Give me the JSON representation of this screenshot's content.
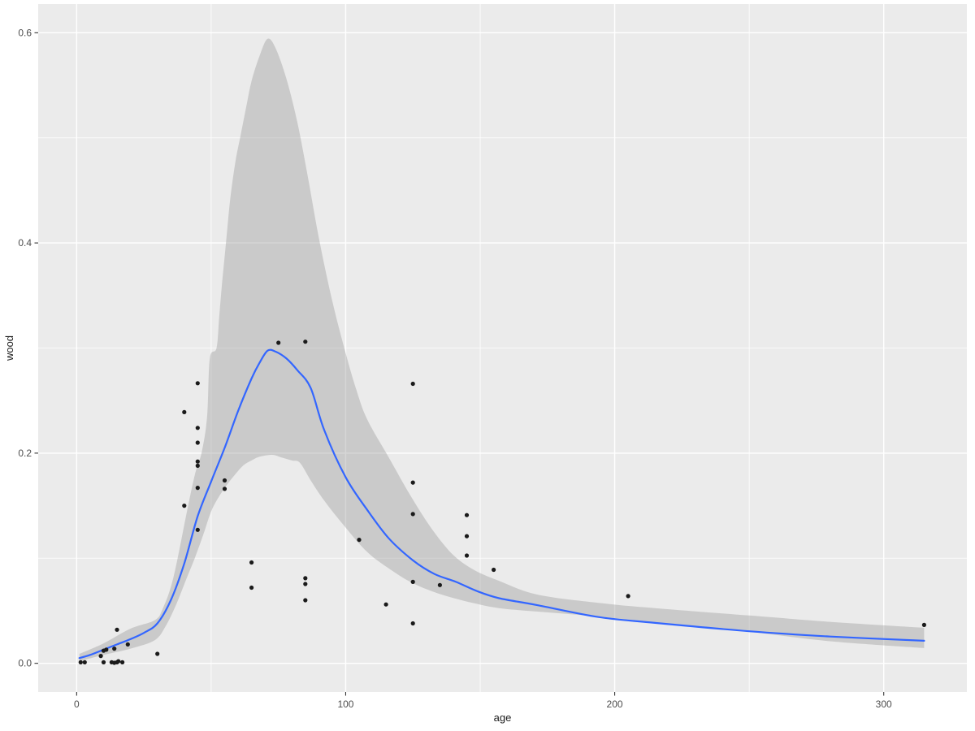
{
  "chart_data": {
    "type": "scatter",
    "title": "",
    "xlabel": "age",
    "ylabel": "wood",
    "legend": "none",
    "grid": "on",
    "panel_background": "#ebebeb",
    "grid_color": "#ffffff",
    "point_color": "#1a1a1a",
    "smooth_line_color": "#3366ff",
    "ribbon_color": "#999999",
    "ribbon_opacity": 0.4,
    "tick_text_color": "#4d4d4d",
    "xlim": [
      -14.3,
      330.9
    ],
    "ylim": [
      -0.0273,
      0.6273
    ],
    "x_ticks": [
      0,
      100,
      200,
      300
    ],
    "x_tick_labels": [
      "0",
      "100",
      "200",
      "300"
    ],
    "x_minor_ticks": [
      50,
      150,
      250
    ],
    "y_ticks": [
      0.0,
      0.2,
      0.4,
      0.6
    ],
    "y_tick_labels": [
      "0.0",
      "0.2",
      "0.4",
      "0.6"
    ],
    "y_minor_ticks": [
      0.1,
      0.3,
      0.5
    ],
    "points": [
      [
        1.5,
        0.001
      ],
      [
        3,
        0.001
      ],
      [
        9,
        0.007
      ],
      [
        10,
        0.001
      ],
      [
        10,
        0.012
      ],
      [
        11,
        0.013
      ],
      [
        13,
        0.001
      ],
      [
        14,
        0.0005
      ],
      [
        14,
        0.014
      ],
      [
        15,
        0.001
      ],
      [
        15,
        0.032
      ],
      [
        15.5,
        0.002
      ],
      [
        17,
        0.001
      ],
      [
        19,
        0.018
      ],
      [
        30,
        0.009
      ],
      [
        40,
        0.239
      ],
      [
        40,
        0.15
      ],
      [
        45,
        0.2665
      ],
      [
        45,
        0.224
      ],
      [
        45,
        0.21
      ],
      [
        45,
        0.192
      ],
      [
        45,
        0.188
      ],
      [
        45,
        0.167
      ],
      [
        45,
        0.127
      ],
      [
        55,
        0.174
      ],
      [
        55,
        0.166
      ],
      [
        65,
        0.096
      ],
      [
        65,
        0.072
      ],
      [
        75,
        0.305
      ],
      [
        85,
        0.306
      ],
      [
        85,
        0.081
      ],
      [
        85,
        0.0755
      ],
      [
        85,
        0.06
      ],
      [
        105,
        0.1175
      ],
      [
        115,
        0.056
      ],
      [
        125,
        0.266
      ],
      [
        125,
        0.172
      ],
      [
        125,
        0.142
      ],
      [
        125,
        0.0775
      ],
      [
        125,
        0.038
      ],
      [
        135,
        0.0745
      ],
      [
        145,
        0.141
      ],
      [
        145,
        0.121
      ],
      [
        145,
        0.1025
      ],
      [
        155,
        0.089
      ],
      [
        205,
        0.064
      ],
      [
        315,
        0.0365
      ]
    ],
    "smooth_line": [
      [
        1,
        0.005
      ],
      [
        5,
        0.008
      ],
      [
        10,
        0.013
      ],
      [
        15,
        0.018
      ],
      [
        20,
        0.023
      ],
      [
        25,
        0.029
      ],
      [
        30,
        0.038
      ],
      [
        35,
        0.06
      ],
      [
        40,
        0.095
      ],
      [
        45,
        0.14
      ],
      [
        50,
        0.173
      ],
      [
        55,
        0.205
      ],
      [
        60,
        0.24
      ],
      [
        65,
        0.271
      ],
      [
        68,
        0.286
      ],
      [
        71,
        0.2975
      ],
      [
        74,
        0.2965
      ],
      [
        78,
        0.29
      ],
      [
        82,
        0.279
      ],
      [
        87,
        0.262
      ],
      [
        92,
        0.222
      ],
      [
        100,
        0.177
      ],
      [
        108,
        0.146
      ],
      [
        116,
        0.119
      ],
      [
        125,
        0.098
      ],
      [
        133,
        0.085
      ],
      [
        141,
        0.0775
      ],
      [
        149,
        0.0685
      ],
      [
        157,
        0.062
      ],
      [
        171,
        0.0555
      ],
      [
        194,
        0.044
      ],
      [
        215,
        0.0385
      ],
      [
        250,
        0.0305
      ],
      [
        280,
        0.0255
      ],
      [
        315,
        0.0215
      ]
    ],
    "ribbon_upper": [
      [
        1,
        0.009
      ],
      [
        10,
        0.019
      ],
      [
        20,
        0.033
      ],
      [
        29,
        0.041
      ],
      [
        32,
        0.052
      ],
      [
        36,
        0.082
      ],
      [
        41,
        0.1445
      ],
      [
        44,
        0.18
      ],
      [
        46.5,
        0.201
      ],
      [
        48.5,
        0.235
      ],
      [
        49.5,
        0.29
      ],
      [
        52,
        0.3
      ],
      [
        53,
        0.33
      ],
      [
        54,
        0.36
      ],
      [
        55.5,
        0.4
      ],
      [
        57,
        0.44
      ],
      [
        59,
        0.477
      ],
      [
        61,
        0.503
      ],
      [
        63,
        0.529
      ],
      [
        65,
        0.554
      ],
      [
        68,
        0.578
      ],
      [
        71,
        0.5943
      ],
      [
        74,
        0.585
      ],
      [
        78,
        0.556
      ],
      [
        82,
        0.515
      ],
      [
        86,
        0.462
      ],
      [
        90,
        0.405
      ],
      [
        95,
        0.345
      ],
      [
        100,
        0.295
      ],
      [
        104,
        0.26
      ],
      [
        108,
        0.232
      ],
      [
        116,
        0.196
      ],
      [
        124,
        0.16
      ],
      [
        132,
        0.128
      ],
      [
        140,
        0.103
      ],
      [
        148,
        0.0885
      ],
      [
        157,
        0.0785
      ],
      [
        171,
        0.0655
      ],
      [
        194,
        0.0575
      ],
      [
        215,
        0.0525
      ],
      [
        250,
        0.0455
      ],
      [
        280,
        0.0395
      ],
      [
        315,
        0.0338
      ]
    ],
    "ribbon_lower": [
      [
        1,
        0.002
      ],
      [
        10,
        0.008
      ],
      [
        20,
        0.014
      ],
      [
        29,
        0.022
      ],
      [
        33,
        0.035
      ],
      [
        37,
        0.056
      ],
      [
        41,
        0.0817
      ],
      [
        44,
        0.1006
      ],
      [
        47,
        0.122
      ],
      [
        50,
        0.1445
      ],
      [
        53,
        0.159
      ],
      [
        56,
        0.1704
      ],
      [
        59,
        0.18
      ],
      [
        62,
        0.1884
      ],
      [
        65,
        0.193
      ],
      [
        68,
        0.1966
      ],
      [
        72.7,
        0.1984
      ],
      [
        76,
        0.196
      ],
      [
        80,
        0.193
      ],
      [
        83,
        0.1907
      ],
      [
        87,
        0.174
      ],
      [
        92,
        0.1549
      ],
      [
        100,
        0.1291
      ],
      [
        108,
        0.1059
      ],
      [
        116,
        0.0904
      ],
      [
        124,
        0.0775
      ],
      [
        132,
        0.0686
      ],
      [
        140,
        0.0621
      ],
      [
        148,
        0.057
      ],
      [
        157,
        0.0525
      ],
      [
        171,
        0.0493
      ],
      [
        194,
        0.0445
      ],
      [
        215,
        0.039
      ],
      [
        250,
        0.03
      ],
      [
        280,
        0.021
      ],
      [
        315,
        0.0145
      ]
    ]
  }
}
